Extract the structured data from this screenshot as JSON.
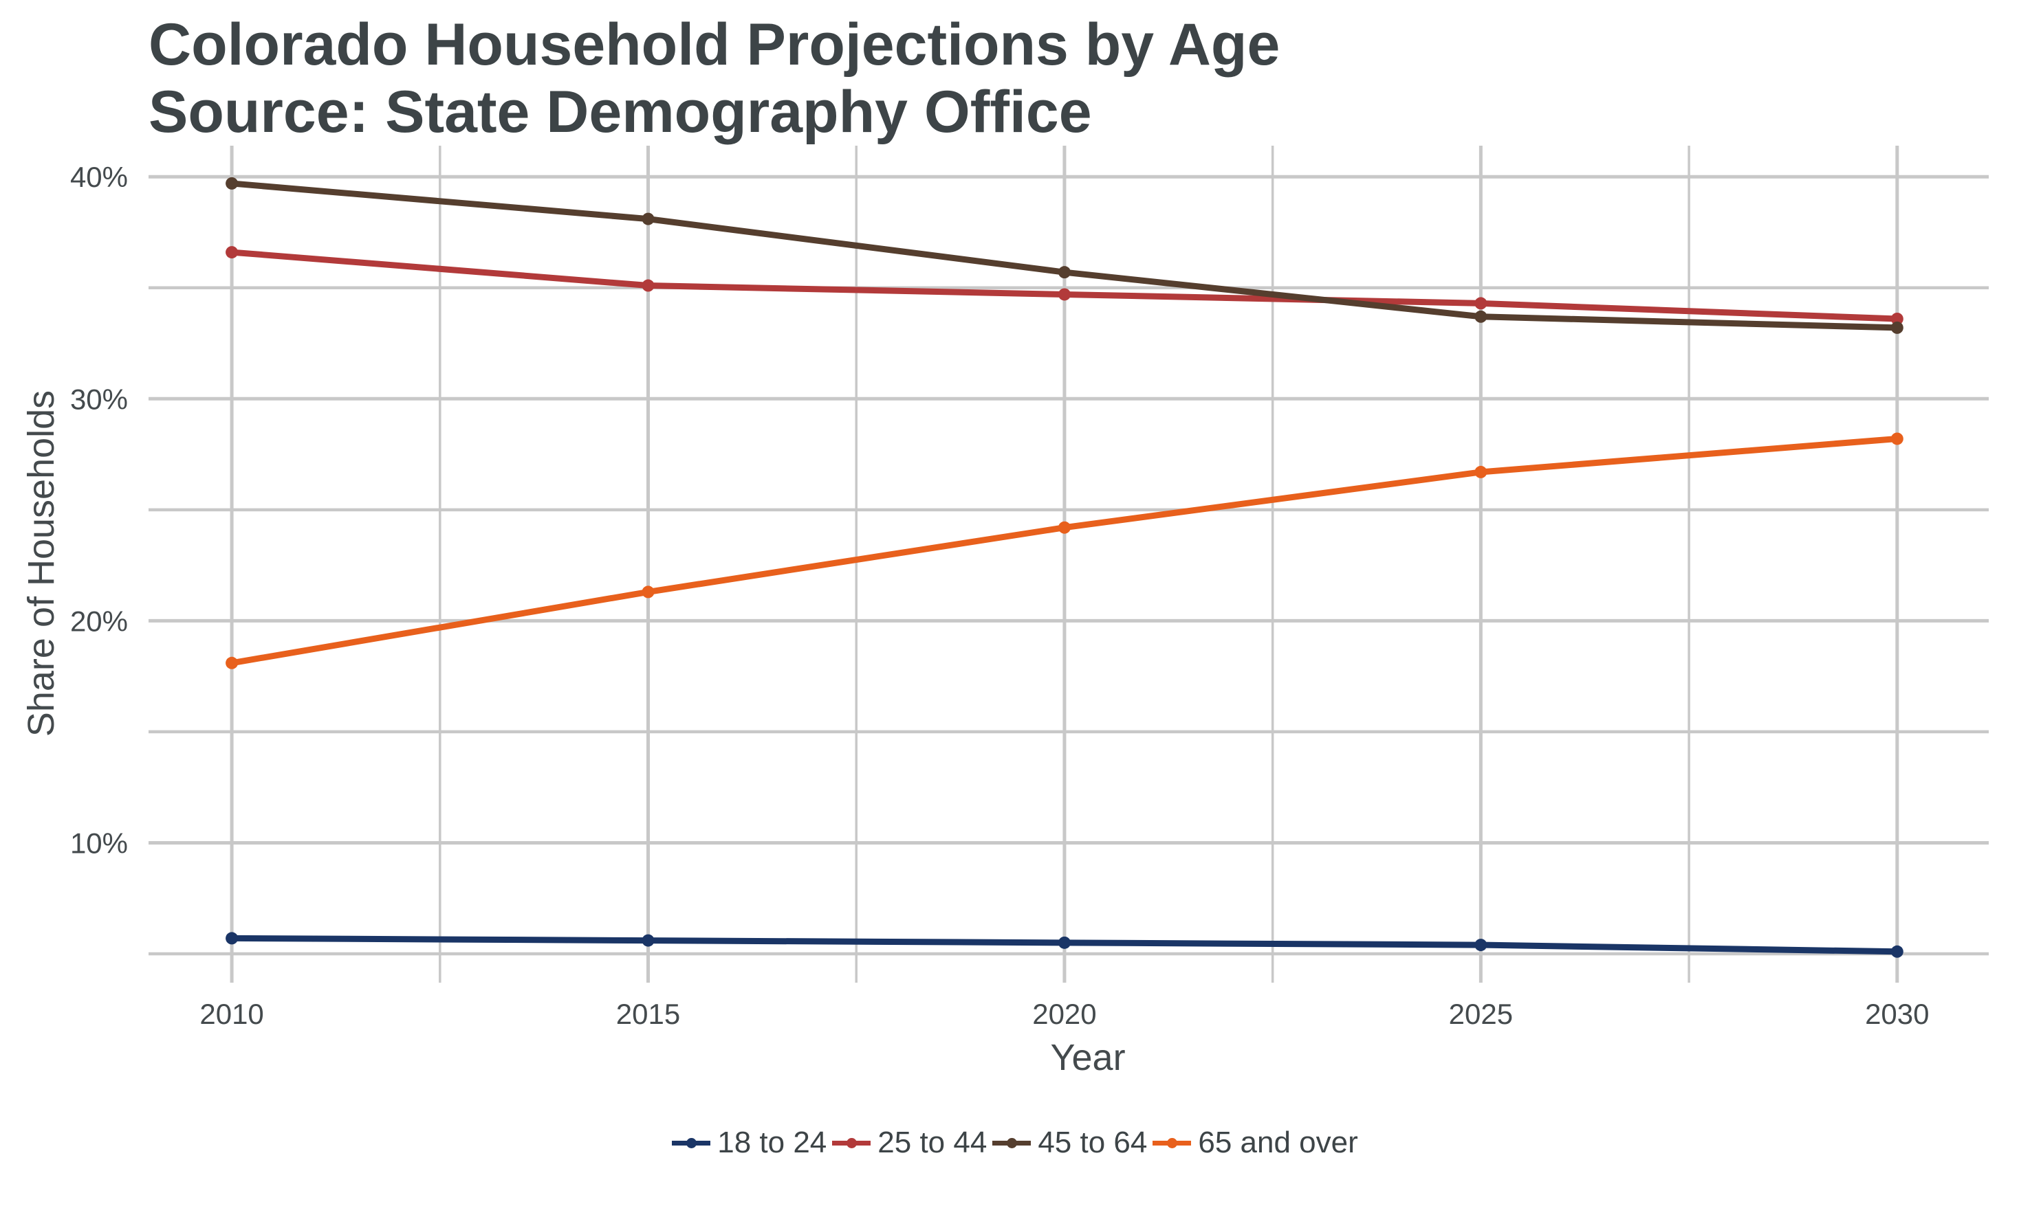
{
  "chart_data": {
    "type": "line",
    "title": "Colorado Household Projections by Age",
    "subtitle": "Source: State Demography Office",
    "xlabel": "Year",
    "ylabel": "Share of Households",
    "x": [
      2010,
      2015,
      2020,
      2025,
      2030
    ],
    "x_ticks": [
      "2010",
      "2015",
      "2020",
      "2025",
      "2030"
    ],
    "y_ticks": [
      0.1,
      0.2,
      0.3,
      0.4
    ],
    "y_tick_labels": [
      "10%",
      "20%",
      "30%",
      "40%"
    ],
    "xlim": [
      2009,
      2031.1
    ],
    "ylim": [
      0.037,
      0.414
    ],
    "grid": true,
    "legend_position": "bottom",
    "series": [
      {
        "name": "18 to 24",
        "color": "#1a3566",
        "values": [
          0.057,
          0.056,
          0.055,
          0.054,
          0.051
        ]
      },
      {
        "name": "25 to 44",
        "color": "#b23a3a",
        "values": [
          0.366,
          0.351,
          0.347,
          0.343,
          0.336
        ]
      },
      {
        "name": "45 to 64",
        "color": "#553e2e",
        "values": [
          0.397,
          0.381,
          0.357,
          0.337,
          0.332
        ]
      },
      {
        "name": "65 and over",
        "color": "#e8601c",
        "values": [
          0.181,
          0.213,
          0.242,
          0.267,
          0.282
        ]
      }
    ]
  }
}
